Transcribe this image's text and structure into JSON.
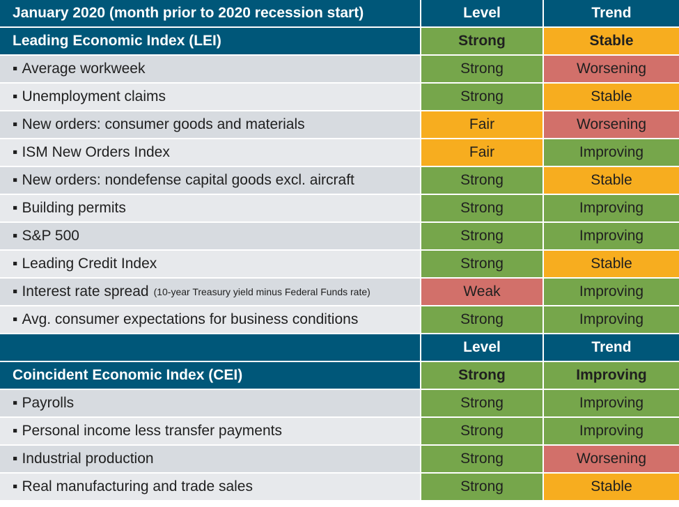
{
  "colors": {
    "header": "#005779",
    "Strong": "#76a64b",
    "Improving": "#76a64b",
    "Fair": "#f7ad1f",
    "Stable": "#f7ad1f",
    "Weak": "#d2706a",
    "Worsening": "#d2706a"
  },
  "chart_data": {
    "type": "table",
    "columns": [
      "Level",
      "Trend"
    ],
    "sections": [
      {
        "header": "January 2020 (month prior to 2020 recession start)",
        "index_name": "Leading Economic Index (LEI)",
        "index_level": "Strong",
        "index_trend": "Stable",
        "rows": [
          {
            "label": "Average workweek",
            "note": "",
            "level": "Strong",
            "trend": "Worsening"
          },
          {
            "label": "Unemployment claims",
            "note": "",
            "level": "Strong",
            "trend": "Stable"
          },
          {
            "label": "New orders: consumer goods and materials",
            "note": "",
            "level": "Fair",
            "trend": "Worsening"
          },
          {
            "label": "ISM New Orders Index",
            "note": "",
            "level": "Fair",
            "trend": "Improving"
          },
          {
            "label": "New orders: nondefense capital goods excl. aircraft",
            "note": "",
            "level": "Strong",
            "trend": "Stable"
          },
          {
            "label": "Building permits",
            "note": "",
            "level": "Strong",
            "trend": "Improving"
          },
          {
            "label": "S&P 500",
            "note": "",
            "level": "Strong",
            "trend": "Improving"
          },
          {
            "label": "Leading Credit Index",
            "note": "",
            "level": "Strong",
            "trend": "Stable"
          },
          {
            "label": "Interest rate spread",
            "note": "(10-year Treasury yield minus Federal Funds rate)",
            "level": "Weak",
            "trend": "Improving"
          },
          {
            "label": "Avg. consumer expectations for business conditions",
            "note": "",
            "level": "Strong",
            "trend": "Improving"
          }
        ]
      },
      {
        "header": "",
        "index_name": "Coincident Economic Index (CEI)",
        "index_level": "Strong",
        "index_trend": "Improving",
        "rows": [
          {
            "label": "Payrolls",
            "note": "",
            "level": "Strong",
            "trend": "Improving"
          },
          {
            "label": "Personal income less transfer payments",
            "note": "",
            "level": "Strong",
            "trend": "Improving"
          },
          {
            "label": "Industrial production",
            "note": "",
            "level": "Strong",
            "trend": "Worsening"
          },
          {
            "label": "Real manufacturing and trade sales",
            "note": "",
            "level": "Strong",
            "trend": "Stable"
          }
        ]
      }
    ]
  }
}
